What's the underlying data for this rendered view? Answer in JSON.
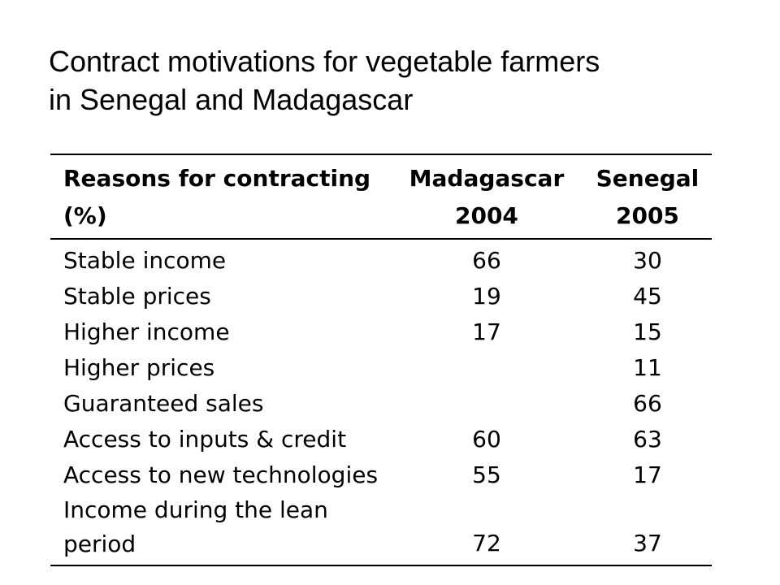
{
  "title": {
    "line1": "Contract motivations for vegetable farmers",
    "line2": "in Senegal and Madagascar"
  },
  "table": {
    "headers": {
      "reason_line1": "Reasons for contracting",
      "reason_line2": "(%)",
      "madagascar_line1": "Madagascar",
      "madagascar_line2": "2004",
      "senegal_line1": "Senegal",
      "senegal_line2": "2005"
    },
    "rows": [
      {
        "reason": "Stable income",
        "madagascar": "66",
        "senegal": "30"
      },
      {
        "reason": "Stable prices",
        "madagascar": "19",
        "senegal": "45"
      },
      {
        "reason": "Higher income",
        "madagascar": "17",
        "senegal": "15"
      },
      {
        "reason": "Higher prices",
        "madagascar": "",
        "senegal": "11"
      },
      {
        "reason": "Guaranteed sales",
        "madagascar": "",
        "senegal": "66"
      },
      {
        "reason": "Access to inputs & credit",
        "madagascar": "60",
        "senegal": "63"
      },
      {
        "reason": "Access to new technologies",
        "madagascar": "55",
        "senegal": "17"
      },
      {
        "reason_line1": "Income during the lean",
        "reason_line2": "period",
        "madagascar": "72",
        "senegal": "37"
      }
    ]
  }
}
